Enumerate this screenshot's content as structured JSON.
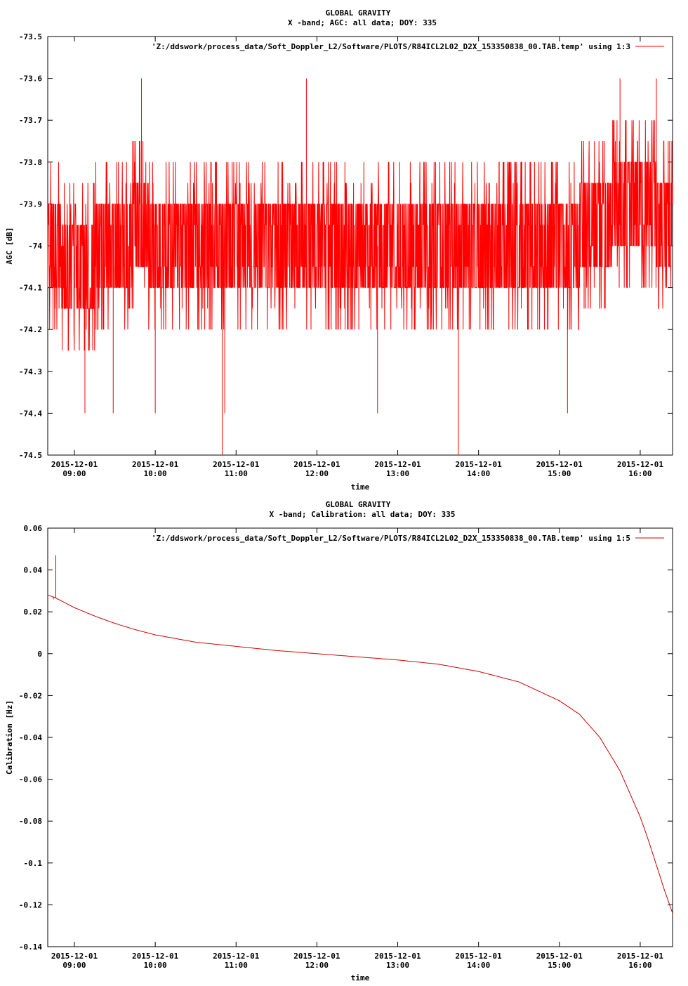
{
  "chart_data": [
    {
      "type": "line",
      "title": "GLOBAL GRAVITY",
      "subtitle": "X -band; AGC: all data; DOY: 335",
      "xlabel": "time",
      "ylabel": "AGC [dB]",
      "ylim": [
        -74.5,
        -73.5
      ],
      "yticks": [
        -73.5,
        -73.6,
        -73.7,
        -73.8,
        -73.9,
        -74,
        -74.1,
        -74.2,
        -74.3,
        -74.4,
        -74.5
      ],
      "ytick_labels": [
        "-73.5",
        "-73.6",
        "-73.7",
        "-73.8",
        "-73.9",
        "-74",
        "-74.1",
        "-74.2",
        "-74.3",
        "-74.4",
        "-74.5"
      ],
      "xlim": [
        8.67,
        16.4
      ],
      "xticks": [
        9,
        10,
        11,
        12,
        13,
        14,
        15,
        16
      ],
      "xtick_labels": [
        [
          "2015-12-01",
          "09:00"
        ],
        [
          "2015-12-01",
          "10:00"
        ],
        [
          "2015-12-01",
          "11:00"
        ],
        [
          "2015-12-01",
          "12:00"
        ],
        [
          "2015-12-01",
          "13:00"
        ],
        [
          "2015-12-01",
          "14:00"
        ],
        [
          "2015-12-01",
          "15:00"
        ],
        [
          "2015-12-01",
          "16:00"
        ]
      ],
      "grid": false,
      "legend_position": "top-right",
      "series": [
        {
          "name": "'Z:/ddswork/process_data/Soft_Doppler_L2/Software/PLOTS/R84ICL2L02_D2X_153350838_00.TAB.temp' using 1:3",
          "color": "#ff0000",
          "description_level": "noisy AGC around -74.0 dB, mostly between -73.9 and -74.1, spikes to -73.6 and -74.5",
          "x": [
            8.67,
            9.0,
            9.5,
            9.83,
            10.0,
            10.5,
            10.83,
            11.0,
            11.5,
            12.0,
            12.5,
            13.0,
            13.5,
            13.75,
            14.0,
            14.5,
            15.0,
            15.5,
            15.8,
            16.0,
            16.4
          ],
          "y": [
            -74.0,
            -74.05,
            -74.0,
            -73.95,
            -74.0,
            -74.0,
            -74.0,
            -74.0,
            -74.0,
            -74.0,
            -74.0,
            -74.0,
            -74.0,
            -74.0,
            -74.0,
            -74.0,
            -74.0,
            -73.95,
            -73.9,
            -73.9,
            -73.95
          ],
          "y_min": -74.5,
          "y_max": -73.6,
          "spikes": [
            {
              "x": 9.13,
              "y": -74.4
            },
            {
              "x": 9.48,
              "y": -74.4
            },
            {
              "x": 9.83,
              "y": -73.6
            },
            {
              "x": 10.0,
              "y": -74.4
            },
            {
              "x": 10.83,
              "y": -74.5
            },
            {
              "x": 10.86,
              "y": -74.4
            },
            {
              "x": 11.87,
              "y": -73.6
            },
            {
              "x": 12.75,
              "y": -74.4
            },
            {
              "x": 13.75,
              "y": -74.5
            },
            {
              "x": 15.1,
              "y": -74.4
            },
            {
              "x": 15.75,
              "y": -73.6
            },
            {
              "x": 16.2,
              "y": -73.6
            }
          ]
        }
      ]
    },
    {
      "type": "line",
      "title": "GLOBAL GRAVITY",
      "subtitle": "X -band; Calibration: all data; DOY: 335",
      "xlabel": "time",
      "ylabel": "Calibration [Hz]",
      "ylim": [
        -0.14,
        0.06
      ],
      "yticks": [
        0.06,
        0.04,
        0.02,
        0,
        -0.02,
        -0.04,
        -0.06,
        -0.08,
        -0.1,
        -0.12,
        -0.14
      ],
      "ytick_labels": [
        "0.06",
        "0.04",
        "0.02",
        "0",
        "-0.02",
        "-0.04",
        "-0.06",
        "-0.08",
        "-0.1",
        "-0.12",
        "-0.14"
      ],
      "xlim": [
        8.67,
        16.4
      ],
      "xticks": [
        9,
        10,
        11,
        12,
        13,
        14,
        15,
        16
      ],
      "xtick_labels": [
        [
          "2015-12-01",
          "09:00"
        ],
        [
          "2015-12-01",
          "10:00"
        ],
        [
          "2015-12-01",
          "11:00"
        ],
        [
          "2015-12-01",
          "12:00"
        ],
        [
          "2015-12-01",
          "13:00"
        ],
        [
          "2015-12-01",
          "14:00"
        ],
        [
          "2015-12-01",
          "15:00"
        ],
        [
          "2015-12-01",
          "16:00"
        ]
      ],
      "grid": false,
      "legend_position": "top-right",
      "series": [
        {
          "name": "'Z:/ddswork/process_data/Soft_Doppler_L2/Software/PLOTS/R84ICL2L02_D2X_153350838_00.TAB.temp' using 1:5",
          "color": "#cc0000",
          "x": [
            8.67,
            8.75,
            8.8,
            8.9,
            9.0,
            9.25,
            9.5,
            9.75,
            10.0,
            10.5,
            11.0,
            11.5,
            12.0,
            12.5,
            13.0,
            13.5,
            14.0,
            14.5,
            15.0,
            15.25,
            15.5,
            15.75,
            16.0,
            16.1,
            16.2,
            16.3,
            16.4
          ],
          "y": [
            0.028,
            0.027,
            0.026,
            0.024,
            0.022,
            0.018,
            0.0145,
            0.0115,
            0.009,
            0.0055,
            0.0035,
            0.0015,
            0.0,
            -0.0015,
            -0.003,
            -0.005,
            -0.0085,
            -0.0135,
            -0.0225,
            -0.029,
            -0.04,
            -0.056,
            -0.078,
            -0.089,
            -0.101,
            -0.113,
            -0.124
          ],
          "spikes": [
            {
              "x": 8.77,
              "y": 0.047
            },
            {
              "x": 8.74,
              "y": 0.026
            }
          ]
        }
      ]
    }
  ]
}
